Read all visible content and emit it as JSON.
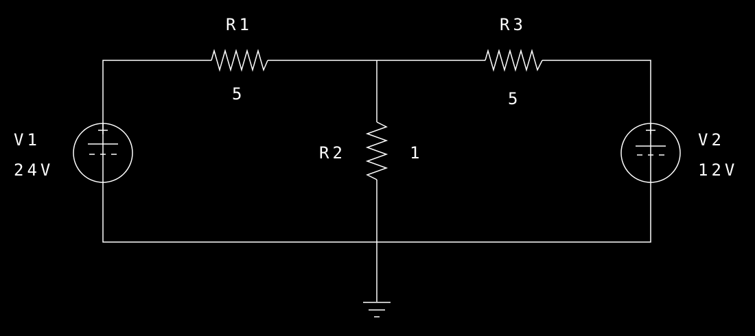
{
  "colors": {
    "background": "#000000",
    "line": "#ffffff",
    "text": "#ffffff"
  },
  "components": {
    "r1": {
      "name": "R1",
      "value": "5"
    },
    "r2": {
      "name": "R2",
      "value": "1"
    },
    "r3": {
      "name": "R3",
      "value": "5"
    },
    "v1": {
      "name": "V1",
      "value": "24V"
    },
    "v2": {
      "name": "V2",
      "value": "12V"
    }
  }
}
